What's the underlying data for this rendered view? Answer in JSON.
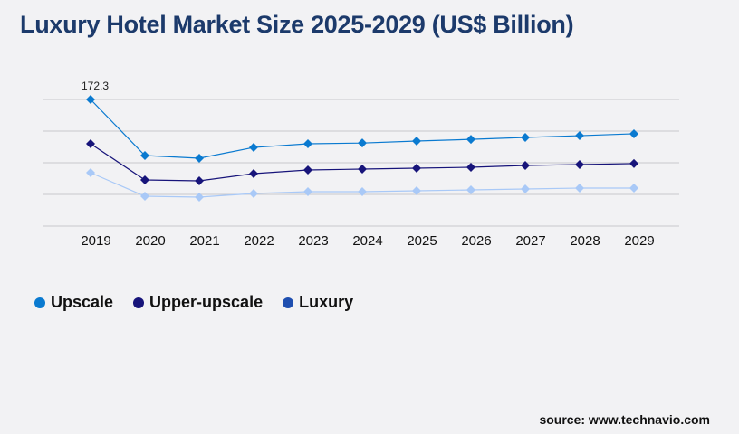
{
  "title": "Luxury Hotel Market Size 2025-2029 (US$ Billion)",
  "source": "source: www.technavio.com",
  "chart_data": {
    "type": "line",
    "title": "Luxury Hotel Market Size 2025-2029 (US$ Billion)",
    "categories": [
      "2019",
      "2020",
      "2021",
      "2022",
      "2023",
      "2024",
      "2025",
      "2026",
      "2027",
      "2028",
      "2029"
    ],
    "ylim": [
      0,
      172.3
    ],
    "grid": true,
    "legend_placement": "bottom-left",
    "annotations": [
      {
        "category": "2019",
        "series": "Upscale",
        "label": "172.3"
      }
    ],
    "series": [
      {
        "name": "Upscale",
        "color": "#0a7ad0",
        "legend_color": "#0a7ad0",
        "values": [
          172.3,
          96,
          92.3,
          107,
          112,
          113,
          115.7,
          118,
          120.6,
          123,
          125.6
        ]
      },
      {
        "name": "Upper-upscale",
        "color": "#17147a",
        "legend_color": "#17147a",
        "values": [
          112,
          62.8,
          61.5,
          71.4,
          76.3,
          77.5,
          78.8,
          80,
          82.5,
          83.7,
          85
        ]
      },
      {
        "name": "Luxury",
        "color": "#a9c9f7",
        "legend_color": "#1f4fb0",
        "values": [
          72.6,
          40.6,
          39.4,
          44.3,
          46.8,
          46.8,
          48,
          49.2,
          50.5,
          51.7,
          51.7
        ]
      }
    ]
  }
}
